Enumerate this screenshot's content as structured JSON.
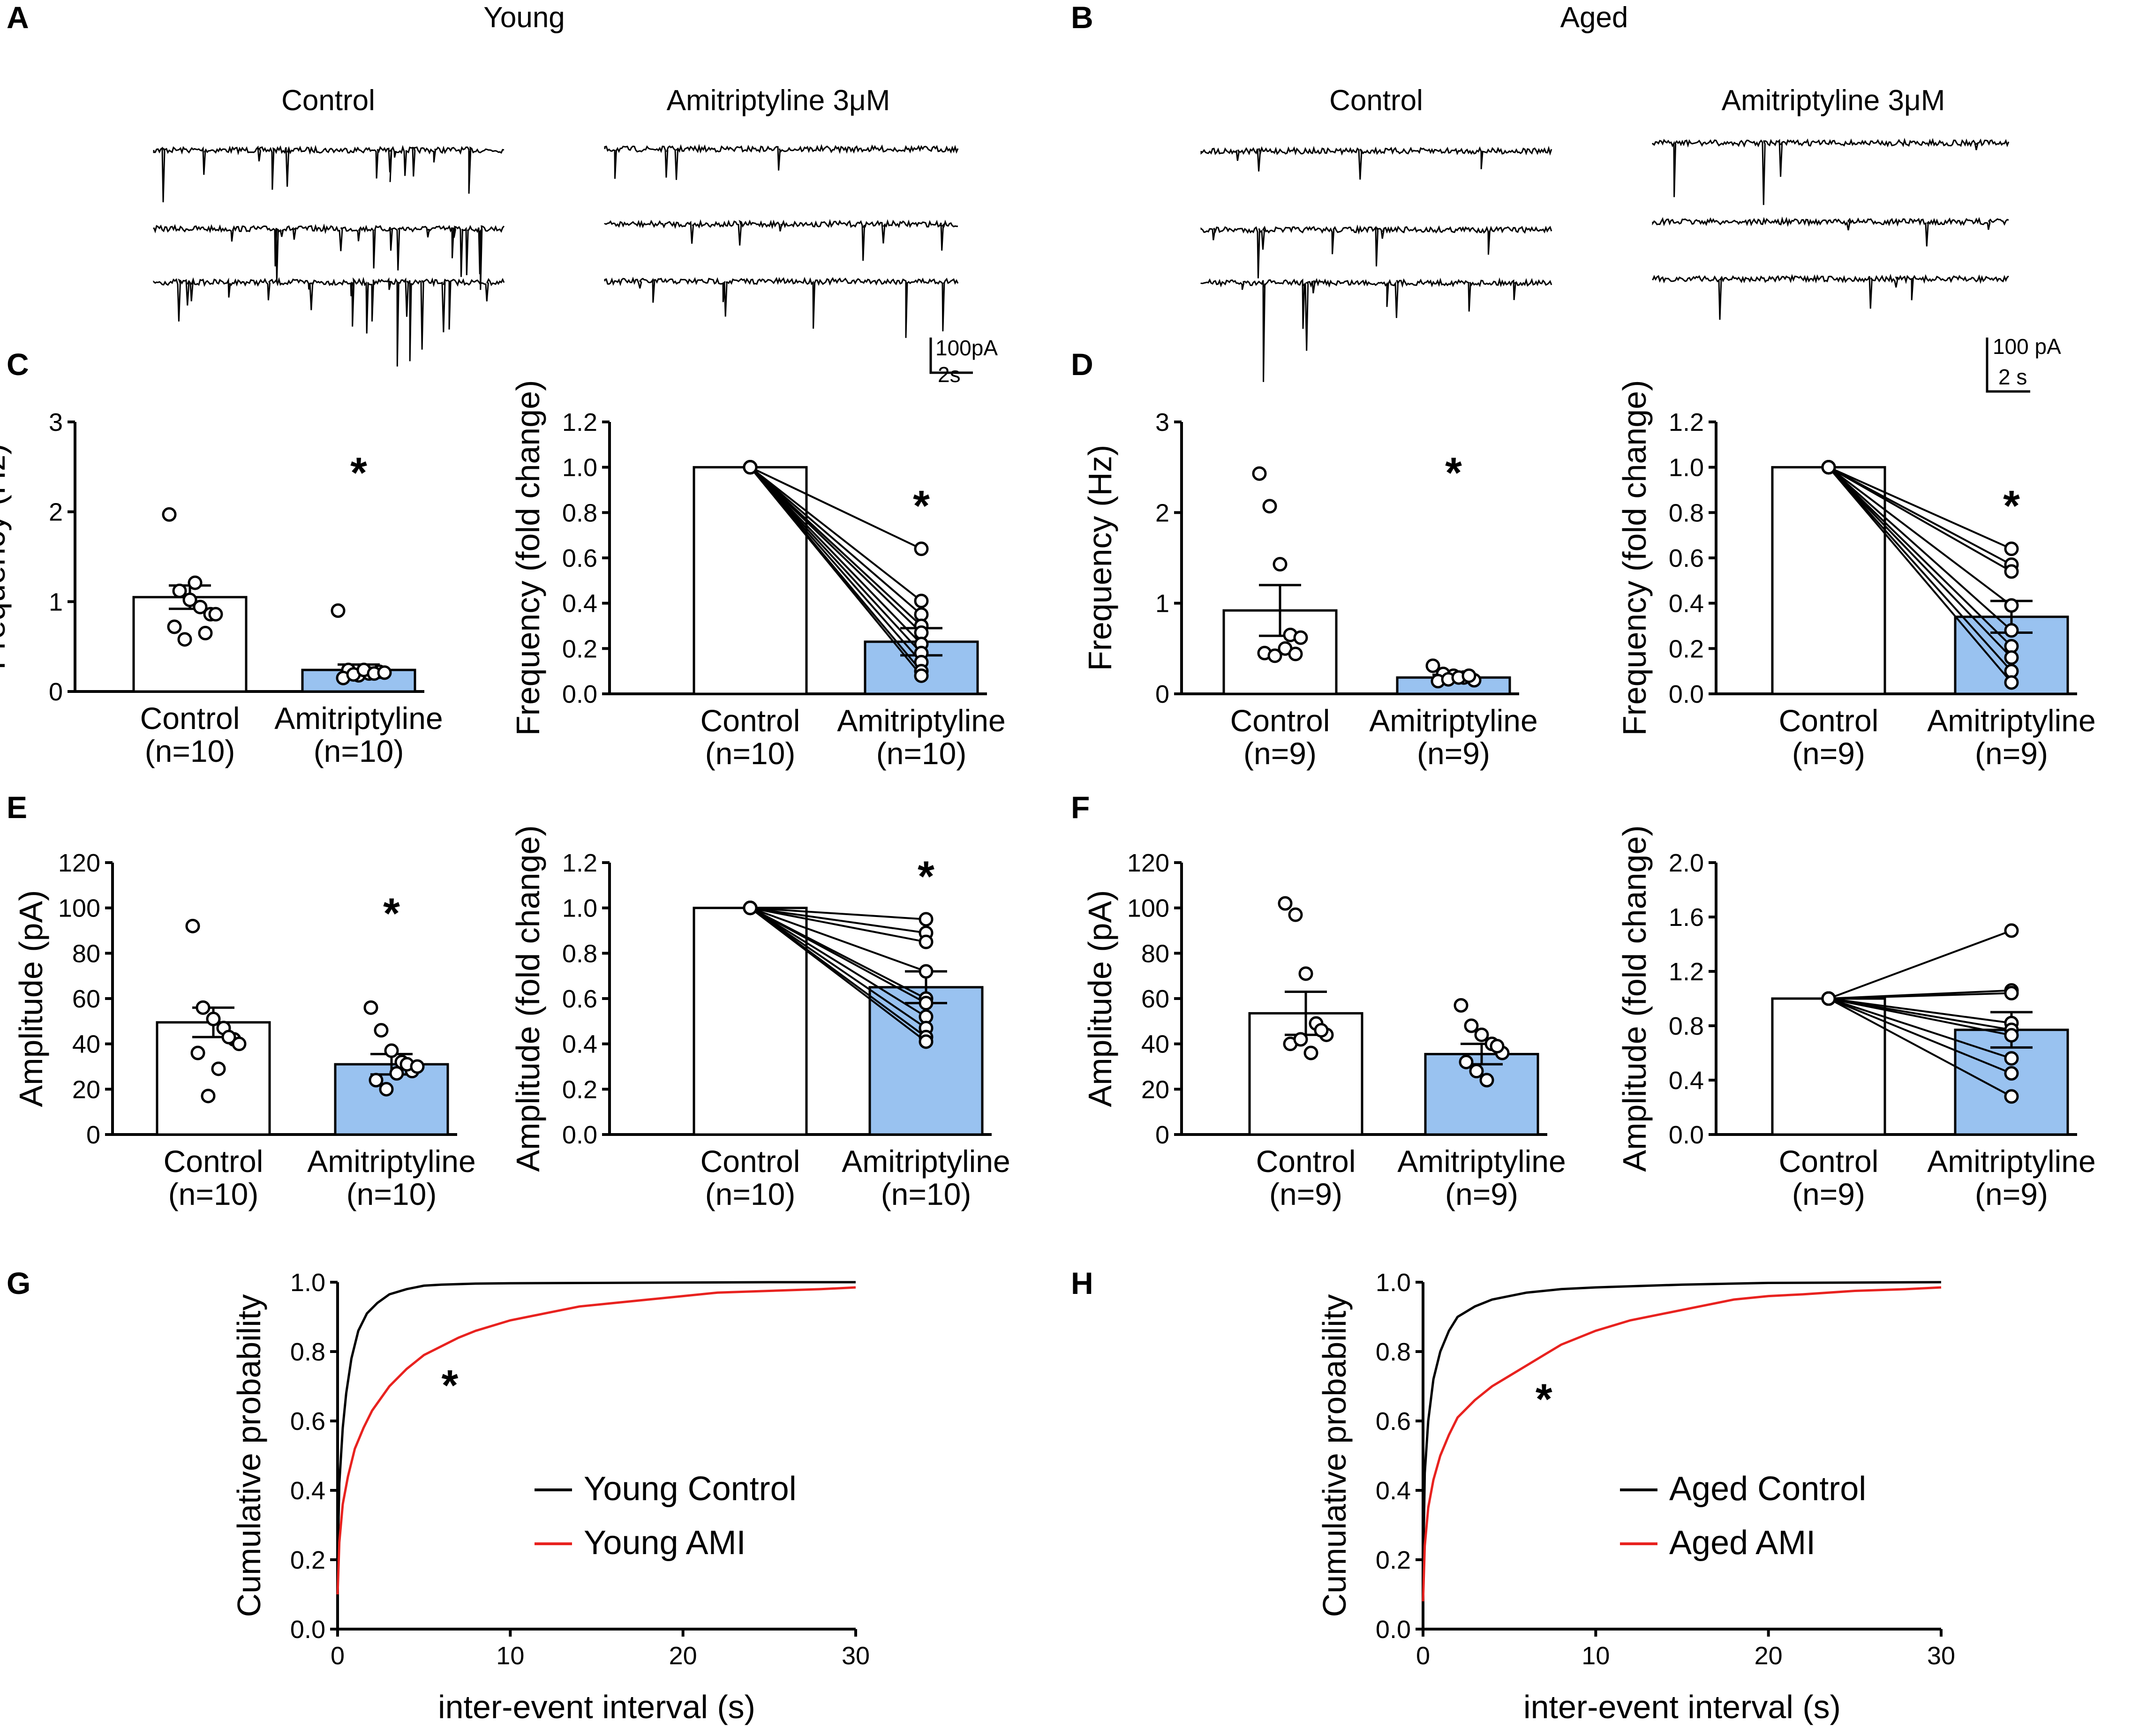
{
  "figure": {
    "header_young": "Young",
    "header_aged": "Aged",
    "trace_label_control": "Control",
    "trace_label_ami": "Amitriptyline  3μM",
    "scale_young": [
      "100pA",
      "2s"
    ],
    "scale_aged": [
      "100 pA",
      "2 s"
    ]
  },
  "colors": {
    "bar_ami": "#99c2f0",
    "red_line": "#e8221f",
    "black": "#000000"
  },
  "chart_data": [
    {
      "id": "C1",
      "panel": "C",
      "type": "bar",
      "ylabel": "Frequency (Hz)",
      "ylim": [
        0,
        3
      ],
      "yticks": [
        0,
        1,
        2,
        3
      ],
      "ytick_labels": [
        "0",
        "1",
        "2",
        "3"
      ],
      "categories": [
        "Control",
        "Amitriptyline"
      ],
      "n_labels": [
        "(n=10)",
        "(n=10)"
      ],
      "values": [
        1.05,
        0.24
      ],
      "errors": [
        0.13,
        0.06
      ],
      "points": [
        [
          1.97,
          1.12,
          1.02,
          0.94,
          0.86,
          0.72,
          0.58,
          1.21,
          0.65,
          0.86
        ],
        [
          0.9,
          0.24,
          0.18,
          0.2,
          0.22,
          0.15,
          0.19,
          0.24,
          0.2,
          0.21
        ]
      ],
      "star": "*"
    },
    {
      "id": "C2",
      "panel": "C",
      "type": "bar",
      "paired": true,
      "ylabel": "Frequency (fold change)",
      "ylim": [
        0,
        1.2
      ],
      "yticks": [
        0,
        0.2,
        0.4,
        0.6,
        0.8,
        1.0,
        1.2
      ],
      "ytick_labels": [
        "0.0",
        "0.2",
        "0.4",
        "0.6",
        "0.8",
        "1.0",
        "1.2"
      ],
      "categories": [
        "Control",
        "Amitriptyline"
      ],
      "n_labels": [
        "(n=10)",
        "(n=10)"
      ],
      "values": [
        1.0,
        0.23
      ],
      "errors": [
        0,
        0.06
      ],
      "points": [
        [
          1,
          1,
          1,
          1,
          1,
          1,
          1,
          1,
          1,
          1
        ],
        [
          0.64,
          0.41,
          0.35,
          0.3,
          0.27,
          0.22,
          0.18,
          0.14,
          0.1,
          0.08
        ]
      ],
      "star": "*"
    },
    {
      "id": "D1",
      "panel": "D",
      "type": "bar",
      "ylabel": "Frequency (Hz)",
      "ylim": [
        0,
        3
      ],
      "yticks": [
        0,
        1,
        2,
        3
      ],
      "ytick_labels": [
        "0",
        "1",
        "2",
        "3"
      ],
      "categories": [
        "Control",
        "Amitriptyline"
      ],
      "n_labels": [
        "(n=9)",
        "(n=9)"
      ],
      "values": [
        0.92,
        0.18
      ],
      "errors": [
        0.28,
        0.03
      ],
      "points": [
        [
          2.43,
          2.07,
          1.43,
          0.65,
          0.62,
          0.45,
          0.42,
          0.5,
          0.44
        ],
        [
          0.31,
          0.22,
          0.2,
          0.18,
          0.15,
          0.14,
          0.16,
          0.18,
          0.2
        ]
      ],
      "star": "*"
    },
    {
      "id": "D2",
      "panel": "D",
      "type": "bar",
      "paired": true,
      "ylabel": "Frequency (fold change)",
      "ylim": [
        0,
        1.2
      ],
      "yticks": [
        0,
        0.2,
        0.4,
        0.6,
        0.8,
        1.0,
        1.2
      ],
      "ytick_labels": [
        "0.0",
        "0.2",
        "0.4",
        "0.6",
        "0.8",
        "1.0",
        "1.2"
      ],
      "categories": [
        "Control",
        "Amitriptyline"
      ],
      "n_labels": [
        "(n=9)",
        "(n=9)"
      ],
      "values": [
        1.0,
        0.34
      ],
      "errors": [
        0,
        0.07
      ],
      "points": [
        [
          1,
          1,
          1,
          1,
          1,
          1,
          1,
          1,
          1
        ],
        [
          0.64,
          0.57,
          0.54,
          0.39,
          0.28,
          0.21,
          0.16,
          0.1,
          0.05
        ]
      ],
      "star": "*"
    },
    {
      "id": "E1",
      "panel": "E",
      "type": "bar",
      "ylabel": "Amplitude (pA)",
      "ylim": [
        0,
        120
      ],
      "yticks": [
        0,
        20,
        40,
        60,
        80,
        100,
        120
      ],
      "ytick_labels": [
        "0",
        "20",
        "40",
        "60",
        "80",
        "100",
        "120"
      ],
      "categories": [
        "Control",
        "Amitriptyline"
      ],
      "n_labels": [
        "(n=10)",
        "(n=10)"
      ],
      "values": [
        49.5,
        31
      ],
      "errors": [
        6.5,
        4.5
      ],
      "points": [
        [
          92,
          56,
          51,
          47,
          42,
          36,
          17,
          29,
          43,
          40
        ],
        [
          56,
          46,
          37,
          32,
          28,
          24,
          20,
          27,
          31,
          30
        ]
      ],
      "star": "*"
    },
    {
      "id": "E2",
      "panel": "E",
      "type": "bar",
      "paired": true,
      "ylabel": "Amplitude (fold change)",
      "ylim": [
        0,
        1.2
      ],
      "yticks": [
        0,
        0.2,
        0.4,
        0.6,
        0.8,
        1.0,
        1.2
      ],
      "ytick_labels": [
        "0.0",
        "0.2",
        "0.4",
        "0.6",
        "0.8",
        "1.0",
        "1.2"
      ],
      "categories": [
        "Control",
        "Amitriptyline"
      ],
      "n_labels": [
        "(n=10)",
        "(n=10)"
      ],
      "values": [
        1.0,
        0.65
      ],
      "errors": [
        0,
        0.07
      ],
      "points": [
        [
          1,
          1,
          1,
          1,
          1,
          1,
          1,
          1,
          1,
          1
        ],
        [
          0.95,
          0.89,
          0.85,
          0.72,
          0.6,
          0.58,
          0.52,
          0.47,
          0.43,
          0.41
        ]
      ],
      "star": "*"
    },
    {
      "id": "F1",
      "panel": "F",
      "type": "bar",
      "ylabel": "Amplitude (pA)",
      "ylim": [
        0,
        120
      ],
      "yticks": [
        0,
        20,
        40,
        60,
        80,
        100,
        120
      ],
      "ytick_labels": [
        "0",
        "20",
        "40",
        "60",
        "80",
        "100",
        "120"
      ],
      "categories": [
        "Control",
        "Amitriptyline"
      ],
      "n_labels": [
        "(n=9)",
        "(n=9)"
      ],
      "values": [
        53.5,
        35.5
      ],
      "errors": [
        9.5,
        4.5
      ],
      "points": [
        [
          102,
          97,
          71,
          49,
          44,
          40,
          42,
          36,
          46
        ],
        [
          57,
          48,
          44,
          40,
          36,
          32,
          28,
          24,
          39
        ]
      ],
      "star": ""
    },
    {
      "id": "F2",
      "panel": "F",
      "type": "bar",
      "paired": true,
      "ylabel": "Amplitude (fold change)",
      "ylim": [
        0,
        2.0
      ],
      "yticks": [
        0,
        0.4,
        0.8,
        1.2,
        1.6,
        2.0
      ],
      "ytick_labels": [
        "0.0",
        "0.4",
        "0.8",
        "1.2",
        "1.6",
        "2.0"
      ],
      "categories": [
        "Control",
        "Amitriptyline"
      ],
      "n_labels": [
        "(n=9)",
        "(n=9)"
      ],
      "values": [
        1.0,
        0.77
      ],
      "errors": [
        0,
        0.13
      ],
      "points": [
        [
          1,
          1,
          1,
          1,
          1,
          1,
          1,
          1,
          1
        ],
        [
          1.5,
          1.06,
          1.04,
          0.82,
          0.77,
          0.73,
          0.56,
          0.45,
          0.28
        ]
      ],
      "star": ""
    },
    {
      "id": "G",
      "panel": "G",
      "type": "line",
      "ylabel": "Cumulative probability",
      "xlabel": "inter-event interval (s)",
      "xlim": [
        0,
        30
      ],
      "ylim": [
        0,
        1.0
      ],
      "xticks": [
        0,
        10,
        20,
        30
      ],
      "xtick_labels": [
        "0",
        "10",
        "20",
        "30"
      ],
      "yticks": [
        0,
        0.2,
        0.4,
        0.6,
        0.8,
        1.0
      ],
      "ytick_labels": [
        "0.0",
        "0.2",
        "0.4",
        "0.6",
        "0.8",
        "1.0"
      ],
      "series": [
        {
          "name": "Young Control",
          "color": "#000000",
          "x": [
            0,
            0.1,
            0.3,
            0.5,
            0.8,
            1.2,
            1.7,
            2.3,
            3,
            4,
            5,
            6,
            8,
            10,
            15,
            20,
            25,
            30
          ],
          "y": [
            0.18,
            0.42,
            0.58,
            0.68,
            0.78,
            0.86,
            0.91,
            0.94,
            0.965,
            0.98,
            0.99,
            0.993,
            0.996,
            0.997,
            0.998,
            0.999,
            1.0,
            1.0
          ]
        },
        {
          "name": "Young AMI",
          "color": "#e8221f",
          "x": [
            0,
            0.1,
            0.3,
            0.6,
            1,
            1.5,
            2,
            3,
            4,
            5,
            6,
            7,
            8,
            10,
            12,
            14,
            16,
            18,
            20,
            22,
            25,
            28,
            30
          ],
          "y": [
            0.1,
            0.25,
            0.36,
            0.44,
            0.52,
            0.58,
            0.63,
            0.7,
            0.75,
            0.79,
            0.815,
            0.84,
            0.86,
            0.89,
            0.91,
            0.93,
            0.94,
            0.95,
            0.96,
            0.97,
            0.975,
            0.98,
            0.985
          ]
        }
      ],
      "star": "*"
    },
    {
      "id": "H",
      "panel": "H",
      "type": "line",
      "ylabel": "Cumulative probability",
      "xlabel": "inter-event interval (s)",
      "xlim": [
        0,
        30
      ],
      "ylim": [
        0,
        1.0
      ],
      "xticks": [
        0,
        10,
        20,
        30
      ],
      "xtick_labels": [
        "0",
        "10",
        "20",
        "30"
      ],
      "yticks": [
        0,
        0.2,
        0.4,
        0.6,
        0.8,
        1.0
      ],
      "ytick_labels": [
        "0.0",
        "0.2",
        "0.4",
        "0.6",
        "0.8",
        "1.0"
      ],
      "series": [
        {
          "name": "Aged Control",
          "color": "#000000",
          "x": [
            0,
            0.1,
            0.3,
            0.6,
            1,
            1.5,
            2,
            3,
            4,
            5,
            6,
            8,
            10,
            15,
            20,
            30
          ],
          "y": [
            0.15,
            0.45,
            0.6,
            0.72,
            0.8,
            0.86,
            0.9,
            0.93,
            0.95,
            0.96,
            0.97,
            0.98,
            0.985,
            0.993,
            0.998,
            1.0
          ]
        },
        {
          "name": "Aged AMI",
          "color": "#e8221f",
          "x": [
            0,
            0.1,
            0.3,
            0.6,
            1,
            1.5,
            2,
            3,
            4,
            5,
            6,
            7,
            8,
            10,
            12,
            14,
            16,
            18,
            20,
            22,
            25,
            28,
            30
          ],
          "y": [
            0.08,
            0.24,
            0.35,
            0.43,
            0.5,
            0.56,
            0.61,
            0.66,
            0.7,
            0.73,
            0.76,
            0.79,
            0.82,
            0.86,
            0.89,
            0.91,
            0.93,
            0.95,
            0.96,
            0.965,
            0.975,
            0.98,
            0.985
          ]
        }
      ],
      "star": "*"
    }
  ]
}
